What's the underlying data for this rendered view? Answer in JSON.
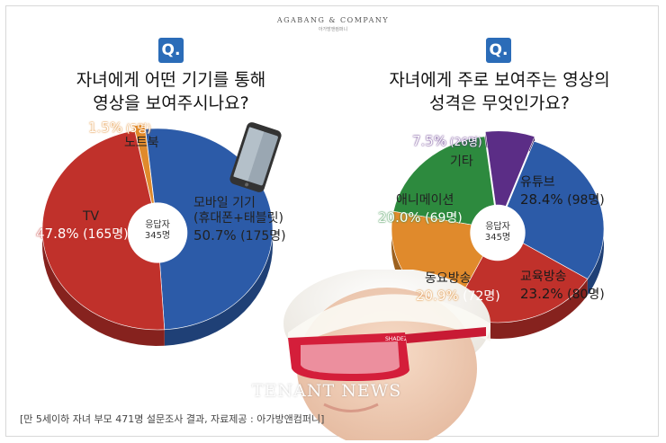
{
  "logo": {
    "main": "AGABANG & COMPANY",
    "sub": "아가방앤컴퍼니"
  },
  "watermark": "TENANT NEWS",
  "footnote": "[만 5세이하 자녀 부모 471명 설문조사 결과, 자료제공 : 아가방앤컴퍼니]",
  "colors": {
    "blue": "#2c5ba8",
    "red": "#c0312b",
    "orange": "#e08a2c",
    "green": "#2d8a3e",
    "purple": "#5b2d86",
    "badge": "#2b6cb8"
  },
  "chart_data": [
    {
      "type": "pie",
      "question_mark": "Q.",
      "title": "자녀에게 어떤 기기를 통해\n영상을 보여주시나요?",
      "center_label": "응답자\n345명",
      "slices": [
        {
          "name": "모바일 기기\n(휴대폰+태블릿)",
          "value": 50.7,
          "count": "(175명)",
          "percent_label": "50.7%",
          "color": "#2c5ba8"
        },
        {
          "name": "TV",
          "value": 47.8,
          "count": "(165명)",
          "percent_label": "47.8%",
          "color": "#c0312b"
        },
        {
          "name": "노트북",
          "value": 1.5,
          "count": "(5명)",
          "percent_label": "1.5%",
          "color": "#e08a2c"
        }
      ]
    },
    {
      "type": "pie",
      "question_mark": "Q.",
      "title": "자녀에게 주로 보여주는 영상의\n성격은 무엇인가요?",
      "center_label": "응답자\n345명",
      "slices": [
        {
          "name": "유튜브",
          "value": 28.4,
          "count": "(98명)",
          "percent_label": "28.4%",
          "color": "#2c5ba8"
        },
        {
          "name": "교육방송",
          "value": 23.2,
          "count": "(80명)",
          "percent_label": "23.2%",
          "color": "#c0312b"
        },
        {
          "name": "동요방송",
          "value": 20.9,
          "count": "(72명)",
          "percent_label": "20.9%",
          "color": "#e08a2c"
        },
        {
          "name": "애니메이션",
          "value": 20.0,
          "count": "(69명)",
          "percent_label": "20.0%",
          "color": "#2d8a3e"
        },
        {
          "name": "기타",
          "value": 7.5,
          "count": "(26명)",
          "percent_label": "7.5%",
          "color": "#5b2d86"
        }
      ]
    }
  ]
}
